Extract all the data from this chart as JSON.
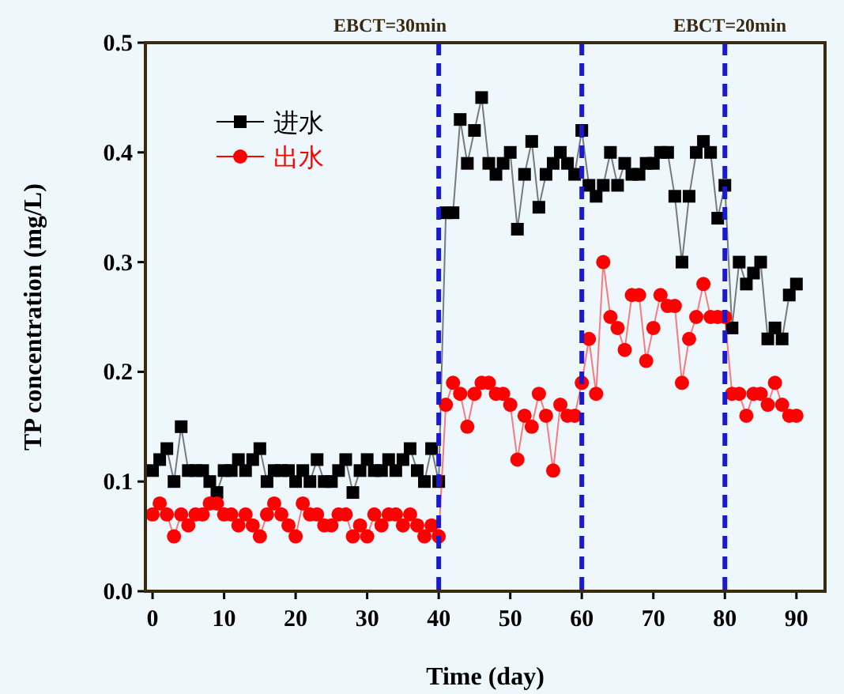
{
  "chart_data": {
    "type": "line",
    "xlabel": "Time (day)",
    "ylabel": "TP concentration (mg/L)",
    "x": [
      0,
      1,
      2,
      3,
      4,
      5,
      6,
      7,
      8,
      9,
      10,
      11,
      12,
      13,
      14,
      15,
      16,
      17,
      18,
      19,
      20,
      21,
      22,
      23,
      24,
      25,
      26,
      27,
      28,
      29,
      30,
      31,
      32,
      33,
      34,
      35,
      36,
      37,
      38,
      39,
      40,
      41,
      42,
      43,
      44,
      45,
      46,
      47,
      48,
      49,
      50,
      51,
      52,
      53,
      54,
      55,
      56,
      57,
      58,
      59,
      60,
      61,
      62,
      63,
      64,
      65,
      66,
      67,
      68,
      69,
      70,
      71,
      72,
      73,
      74,
      75,
      76,
      77,
      78,
      79,
      80,
      81,
      82,
      83,
      84,
      85,
      86,
      87,
      88,
      89,
      90
    ],
    "series": [
      {
        "name": "进水",
        "color": "#000000",
        "marker": "square",
        "values": [
          0.11,
          0.12,
          0.13,
          0.1,
          0.15,
          0.11,
          0.11,
          0.11,
          0.1,
          0.09,
          0.11,
          0.11,
          0.12,
          0.11,
          0.12,
          0.13,
          0.1,
          0.11,
          0.11,
          0.11,
          0.1,
          0.11,
          0.1,
          0.12,
          0.1,
          0.1,
          0.11,
          0.12,
          0.09,
          0.11,
          0.12,
          0.11,
          0.11,
          0.12,
          0.11,
          0.12,
          0.13,
          0.11,
          0.1,
          0.13,
          0.1,
          0.345,
          0.345,
          0.43,
          0.39,
          0.42,
          0.45,
          0.39,
          0.38,
          0.39,
          0.4,
          0.33,
          0.38,
          0.41,
          0.35,
          0.38,
          0.39,
          0.4,
          0.39,
          0.38,
          0.42,
          0.37,
          0.36,
          0.37,
          0.4,
          0.37,
          0.39,
          0.38,
          0.38,
          0.39,
          0.39,
          0.4,
          0.4,
          0.36,
          0.3,
          0.36,
          0.4,
          0.41,
          0.4,
          0.34,
          0.37,
          0.24,
          0.3,
          0.28,
          0.29,
          0.3,
          0.23,
          0.24,
          0.23,
          0.27,
          0.28
        ]
      },
      {
        "name": "出水",
        "color": "#ff0000",
        "marker": "circle",
        "values": [
          0.07,
          0.08,
          0.07,
          0.05,
          0.07,
          0.06,
          0.07,
          0.07,
          0.08,
          0.08,
          0.07,
          0.07,
          0.06,
          0.07,
          0.06,
          0.05,
          0.07,
          0.08,
          0.07,
          0.06,
          0.05,
          0.08,
          0.07,
          0.07,
          0.06,
          0.06,
          0.07,
          0.07,
          0.05,
          0.06,
          0.05,
          0.07,
          0.06,
          0.07,
          0.07,
          0.06,
          0.07,
          0.06,
          0.05,
          0.06,
          0.05,
          0.17,
          0.19,
          0.18,
          0.15,
          0.18,
          0.19,
          0.19,
          0.18,
          0.18,
          0.17,
          0.12,
          0.16,
          0.15,
          0.18,
          0.16,
          0.11,
          0.17,
          0.16,
          0.16,
          0.19,
          0.23,
          0.18,
          0.3,
          0.25,
          0.24,
          0.22,
          0.27,
          0.27,
          0.21,
          0.24,
          0.27,
          0.26,
          0.26,
          0.19,
          0.23,
          0.25,
          0.28,
          0.25,
          0.25,
          0.25,
          0.18,
          0.18,
          0.16,
          0.18,
          0.18,
          0.17,
          0.19,
          0.17,
          0.16,
          0.16
        ]
      }
    ],
    "xlim": [
      -1,
      94
    ],
    "xticks": [
      0,
      10,
      20,
      30,
      40,
      50,
      60,
      70,
      80,
      90
    ],
    "ylim": [
      0,
      0.5
    ],
    "yticks": [
      {
        "value": 0,
        "label": "0.0"
      },
      0.1,
      0.2,
      0.3,
      0.4,
      0.5
    ],
    "ref_lines": [
      {
        "axis": "x",
        "value": 40,
        "color": "#1a1acc",
        "line_style": "dashed"
      },
      {
        "axis": "x",
        "value": 60,
        "color": "#1a1acc",
        "line_style": "dashed"
      },
      {
        "axis": "x",
        "value": 80,
        "color": "#1a1acc",
        "line_style": "dashed"
      }
    ],
    "annotations": [
      "EBCT=30min",
      "EBCT=20min"
    ],
    "legend": "top left",
    "grid": false
  }
}
